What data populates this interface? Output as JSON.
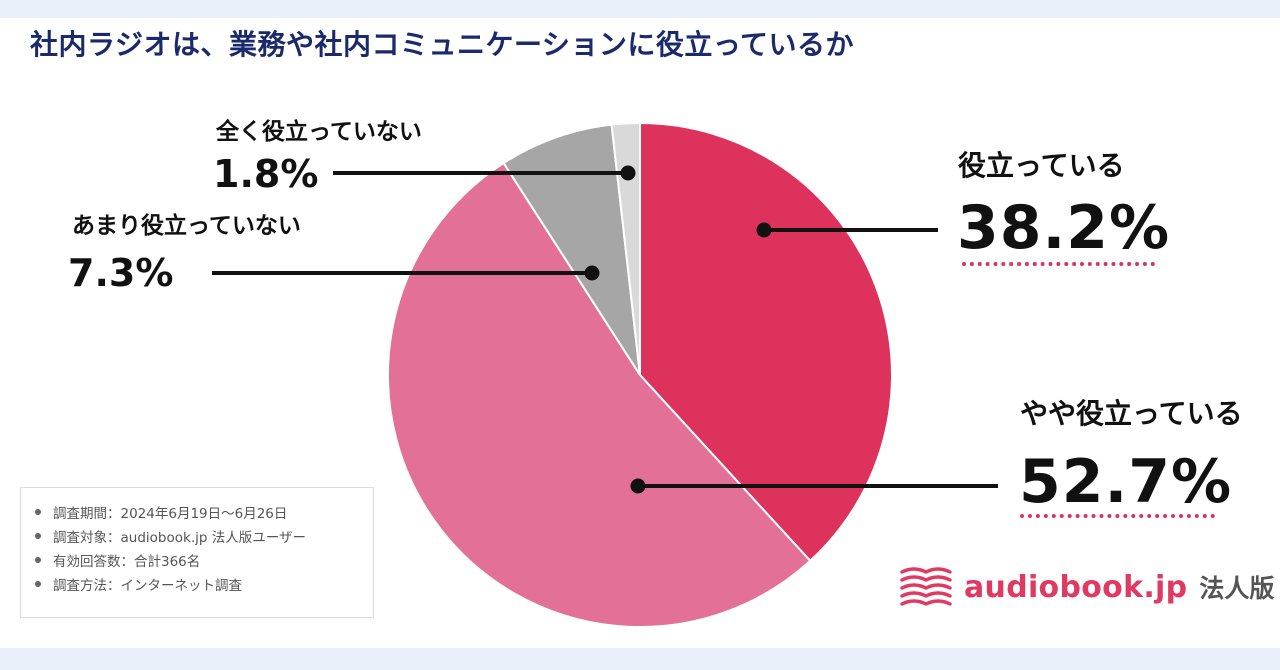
{
  "title": "社内ラジオは、業務や社内コミュニケーションに役立っているか",
  "chart_data": {
    "type": "pie",
    "title": "社内ラジオは、業務や社内コミュニケーションに役立っているか",
    "unit": "%",
    "slices": [
      {
        "label": "役立っている",
        "value": 38.2,
        "value_text": "38.2%",
        "color": "#dd325c"
      },
      {
        "label": "やや役立っている",
        "value": 52.7,
        "value_text": "52.7%",
        "color": "#e27097"
      },
      {
        "label": "あまり役立っていない",
        "value": 7.3,
        "value_text": "7.3%",
        "color": "#a6a6a6"
      },
      {
        "label": "全く役立っていない",
        "value": 1.8,
        "value_text": "1.8%",
        "color": "#d9d9d9"
      }
    ],
    "start_angle": "12 o'clock",
    "direction": "clockwise",
    "legend": "none"
  },
  "notes": [
    "調査期間：2024年6月19日〜6月26日",
    "調査対象：audiobook.jp 法人版ユーザー",
    "有効回答数：合計366名",
    "調査方法：インターネット調査"
  ],
  "brand": {
    "name": "audiobook.jp",
    "suffix": "法人版",
    "color": "#e03a63"
  }
}
